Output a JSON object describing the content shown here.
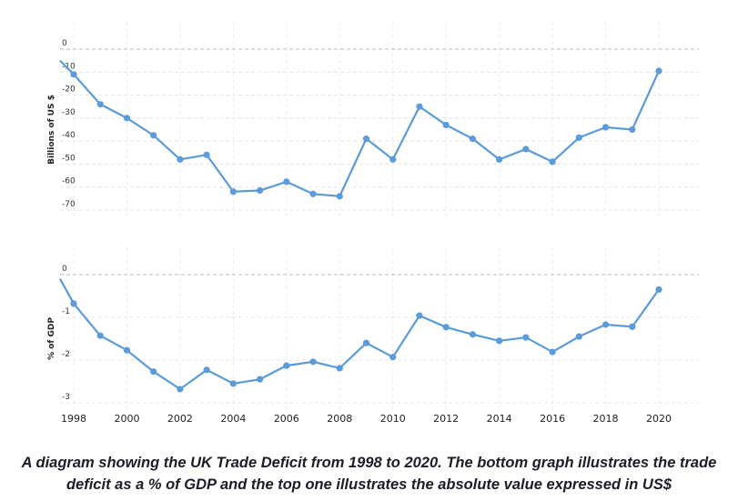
{
  "chart_data": [
    {
      "type": "line",
      "ylabel": "Billions of US $",
      "ylim": [
        -70,
        0
      ],
      "yticks": [
        0,
        -10,
        -20,
        -30,
        -40,
        -50,
        -60,
        -70
      ],
      "x": [
        1998,
        1999,
        2000,
        2001,
        2002,
        2003,
        2004,
        2005,
        2006,
        2007,
        2008,
        2009,
        2010,
        2011,
        2012,
        2013,
        2014,
        2015,
        2016,
        2017,
        2018,
        2019,
        2020
      ],
      "values": [
        -11,
        -24,
        -30,
        -37.5,
        -48,
        -46,
        -62,
        -61.5,
        -57.7,
        -63,
        -64,
        -39,
        -48,
        -25,
        -33,
        -39,
        -48,
        -43.5,
        -49,
        -38.5,
        -34,
        -35,
        -9.5
      ],
      "color": "#5b9bd9"
    },
    {
      "type": "line",
      "ylabel": "% of GDP",
      "ylim": [
        -3,
        0
      ],
      "yticks": [
        0,
        -1,
        -2,
        -3
      ],
      "x": [
        1998,
        1999,
        2000,
        2001,
        2002,
        2003,
        2004,
        2005,
        2006,
        2007,
        2008,
        2009,
        2010,
        2011,
        2012,
        2013,
        2014,
        2015,
        2016,
        2017,
        2018,
        2019,
        2020
      ],
      "values": [
        -0.68,
        -1.43,
        -1.77,
        -2.27,
        -2.68,
        -2.23,
        -2.55,
        -2.45,
        -2.13,
        -2.04,
        -2.19,
        -1.6,
        -1.93,
        -0.96,
        -1.23,
        -1.4,
        -1.55,
        -1.47,
        -1.81,
        -1.45,
        -1.17,
        -1.22,
        -0.35
      ],
      "xticks": [
        1998,
        2000,
        2002,
        2004,
        2006,
        2008,
        2010,
        2012,
        2014,
        2016,
        2018,
        2020
      ],
      "color": "#5b9bd9"
    }
  ],
  "caption": "A diagram showing the UK Trade Deficit from 1998 to 2020. The bottom graph illustrates the trade deficit as a % of GDP and the top one illustrates the absolute value expressed in US$"
}
